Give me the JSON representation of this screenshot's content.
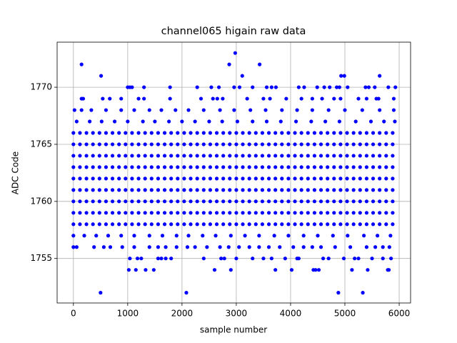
{
  "chart_data": {
    "type": "scatter",
    "title": "channel065 higain raw data",
    "x_label": "sample number",
    "y_label": "ADC Code",
    "xlim": [
      -300,
      6210
    ],
    "ylim": [
      1751.1,
      1773.95
    ],
    "xticks": [
      0,
      1000,
      2000,
      3000,
      4000,
      5000,
      6000
    ],
    "yticks": [
      1755,
      1760,
      1765,
      1770
    ],
    "grid": true,
    "color": "#0000ff",
    "x": [
      0,
      120,
      240,
      360,
      480,
      600,
      720,
      840,
      960,
      1080,
      1200,
      1320,
      1440,
      1560,
      1680,
      1800,
      1920,
      2040,
      2160,
      2280,
      2400,
      2520,
      2640,
      2760,
      2880,
      3000,
      3120,
      3240,
      3360,
      3480,
      3600,
      3720,
      3840,
      3960,
      4080,
      4200,
      4320,
      4440,
      4560,
      4680,
      4800,
      4920,
      5040,
      5160,
      5280,
      5400,
      5520,
      5640,
      5760,
      5880
    ],
    "series": [
      {
        "values": [
          1758,
          1758,
          1758,
          1758,
          1758,
          1758,
          1758,
          1758,
          1758,
          1758,
          1758,
          1758,
          1758,
          1758,
          1758,
          1758,
          1758,
          1758,
          1758,
          1758,
          1758,
          1758,
          1758,
          1758,
          1758,
          1758,
          1758,
          1758,
          1758,
          1758,
          1758,
          1758,
          1758,
          1758,
          1758,
          1758,
          1758,
          1758,
          1758,
          1758,
          1758,
          1758,
          1758,
          1758,
          1758,
          1758,
          1758,
          1758,
          1758,
          1758
        ]
      },
      {
        "values": [
          1759,
          1759,
          1759,
          1759,
          1759,
          1759,
          1759,
          1759,
          1759,
          1759,
          1759,
          1759,
          1759,
          1759,
          1759,
          1759,
          1759,
          1759,
          1759,
          1759,
          1759,
          1759,
          1759,
          1759,
          1759,
          1759,
          1759,
          1759,
          1759,
          1759,
          1759,
          1759,
          1759,
          1759,
          1759,
          1759,
          1759,
          1759,
          1759,
          1759,
          1759,
          1759,
          1759,
          1759,
          1759,
          1759,
          1759,
          1759,
          1759,
          1759
        ]
      },
      {
        "values": [
          1760,
          1760,
          1760,
          1760,
          1760,
          1760,
          1760,
          1760,
          1760,
          1760,
          1760,
          1760,
          1760,
          1760,
          1760,
          1760,
          1760,
          1760,
          1760,
          1760,
          1760,
          1760,
          1760,
          1760,
          1760,
          1760,
          1760,
          1760,
          1760,
          1760,
          1760,
          1760,
          1760,
          1760,
          1760,
          1760,
          1760,
          1760,
          1760,
          1760,
          1760,
          1760,
          1760,
          1760,
          1760,
          1760,
          1760,
          1760,
          1760,
          1760
        ]
      },
      {
        "values": [
          1761,
          1761,
          1761,
          1761,
          1761,
          1761,
          1761,
          1761,
          1761,
          1761,
          1761,
          1761,
          1761,
          1761,
          1761,
          1761,
          1761,
          1761,
          1761,
          1761,
          1761,
          1761,
          1761,
          1761,
          1761,
          1761,
          1761,
          1761,
          1761,
          1761,
          1761,
          1761,
          1761,
          1761,
          1761,
          1761,
          1761,
          1761,
          1761,
          1761,
          1761,
          1761,
          1761,
          1761,
          1761,
          1761,
          1761,
          1761,
          1761,
          1761
        ]
      },
      {
        "values": [
          1762,
          1762,
          1762,
          1762,
          1762,
          1762,
          1762,
          1762,
          1762,
          1762,
          1762,
          1762,
          1762,
          1762,
          1762,
          1762,
          1762,
          1762,
          1762,
          1762,
          1762,
          1762,
          1762,
          1762,
          1762,
          1762,
          1762,
          1762,
          1762,
          1762,
          1762,
          1762,
          1762,
          1762,
          1762,
          1762,
          1762,
          1762,
          1762,
          1762,
          1762,
          1762,
          1762,
          1762,
          1762,
          1762,
          1762,
          1762,
          1762,
          1762
        ]
      },
      {
        "values": [
          1763,
          1763,
          1763,
          1763,
          1763,
          1763,
          1763,
          1763,
          1763,
          1763,
          1763,
          1763,
          1763,
          1763,
          1763,
          1763,
          1763,
          1763,
          1763,
          1763,
          1763,
          1763,
          1763,
          1763,
          1763,
          1763,
          1763,
          1763,
          1763,
          1763,
          1763,
          1763,
          1763,
          1763,
          1763,
          1763,
          1763,
          1763,
          1763,
          1763,
          1763,
          1763,
          1763,
          1763,
          1763,
          1763,
          1763,
          1763,
          1763,
          1763
        ]
      },
      {
        "values": [
          1764,
          1764,
          1764,
          1764,
          1764,
          1764,
          1764,
          1764,
          1764,
          1764,
          1764,
          1764,
          1764,
          1764,
          1764,
          1764,
          1764,
          1764,
          1764,
          1764,
          1764,
          1764,
          1764,
          1764,
          1764,
          1764,
          1764,
          1764,
          1764,
          1764,
          1764,
          1764,
          1764,
          1764,
          1764,
          1764,
          1764,
          1764,
          1764,
          1764,
          1764,
          1764,
          1764,
          1764,
          1764,
          1764,
          1764,
          1764,
          1764,
          1764
        ]
      },
      {
        "values": [
          1765,
          1765,
          1765,
          1765,
          1765,
          1765,
          1765,
          1765,
          1765,
          1765,
          1765,
          1765,
          1765,
          1765,
          1765,
          1765,
          1765,
          1765,
          1765,
          1765,
          1765,
          1765,
          1765,
          1765,
          1765,
          1765,
          1765,
          1765,
          1765,
          1765,
          1765,
          1765,
          1765,
          1765,
          1765,
          1765,
          1765,
          1765,
          1765,
          1765,
          1765,
          1765,
          1765,
          1765,
          1765,
          1765,
          1765,
          1765,
          1765,
          1765
        ]
      },
      {
        "values": [
          1766,
          1766,
          1766,
          1766,
          1766,
          1766,
          1766,
          1766,
          1766,
          1766,
          1766,
          1766,
          1766,
          1766,
          1766,
          1766,
          1766,
          1766,
          1766,
          1766,
          1766,
          1766,
          1766,
          1766,
          1766,
          1766,
          1766,
          1766,
          1766,
          1766,
          1766,
          1766,
          1766,
          1766,
          1766,
          1766,
          1766,
          1766,
          1766,
          1766,
          1766,
          1766,
          1766,
          1766,
          1766,
          1766,
          1766,
          1766,
          1766,
          1766
        ]
      },
      {
        "x": [
          0,
          200,
          420,
          640,
          880,
          1120,
          1400,
          1640,
          1900,
          2120,
          2380,
          2620,
          2900,
          3160,
          3420,
          3700,
          3960,
          4240,
          4500,
          4780,
          5050,
          5350,
          5600,
          5840
        ],
        "values": [
          1757,
          1757,
          1757,
          1757,
          1757,
          1757,
          1757,
          1757,
          1757,
          1757,
          1757,
          1757,
          1757,
          1757,
          1757,
          1757,
          1757,
          1757,
          1757,
          1757,
          1757,
          1757,
          1757,
          1757
        ]
      },
      {
        "x": [
          60,
          300,
          520,
          760,
          1000,
          1280,
          1500,
          1760,
          2000,
          2240,
          2500,
          2740,
          3020,
          3300,
          3560,
          3820,
          4100,
          4380,
          4640,
          4900,
          5200,
          5480,
          5720,
          5920
        ],
        "values": [
          1767,
          1767,
          1767,
          1767,
          1767,
          1767,
          1767,
          1767,
          1767,
          1767,
          1767,
          1767,
          1767,
          1767,
          1767,
          1767,
          1767,
          1767,
          1767,
          1767,
          1767,
          1767,
          1767,
          1767
        ]
      },
      {
        "x": [
          20,
          150,
          330,
          600,
          880,
          1120,
          1400,
          1620,
          1880,
          2120,
          2400,
          2700,
          2960,
          3260,
          3540,
          3840,
          4120,
          4400,
          4700,
          5000,
          5320,
          5640,
          5900
        ],
        "values": [
          1768,
          1768,
          1768,
          1768,
          1768,
          1768,
          1768,
          1768,
          1768,
          1768,
          1768,
          1768,
          1768,
          1768,
          1768,
          1768,
          1768,
          1768,
          1768,
          1768,
          1768,
          1768,
          1768
        ]
      },
      {
        "x": [
          0,
          60,
          380,
          560,
          680,
          900,
          1120,
          1400,
          1560,
          1700,
          1900,
          2100,
          2240,
          2460,
          2700,
          2860,
          3050,
          3240,
          3420,
          3600,
          3800,
          4050,
          4240,
          4400,
          4560,
          4820,
          5100,
          5400,
          5560,
          5700,
          5820
        ],
        "values": [
          1756,
          1756,
          1756,
          1756,
          1756,
          1756,
          1756,
          1756,
          1756,
          1756,
          1756,
          1756,
          1756,
          1756,
          1756,
          1756,
          1756,
          1756,
          1756,
          1756,
          1756,
          1756,
          1756,
          1756,
          1756,
          1756,
          1756,
          1756,
          1756,
          1756,
          1756
        ]
      },
      {
        "x": [
          1040,
          1180,
          1250,
          1560,
          1620,
          1700,
          1800,
          2400,
          2720,
          2780,
          3000,
          3300,
          3500,
          3650,
          3900,
          4120,
          4150,
          4600,
          4700,
          4980,
          5180,
          5250,
          5500,
          5700,
          5850
        ],
        "values": [
          1755,
          1755,
          1755,
          1755,
          1755,
          1755,
          1755,
          1755,
          1755,
          1755,
          1755,
          1755,
          1755,
          1755,
          1755,
          1755,
          1755,
          1755,
          1755,
          1755,
          1755,
          1755,
          1755,
          1755,
          1755
        ]
      },
      {
        "x": [
          1020,
          1150,
          1330,
          1480,
          2600,
          2900,
          3720,
          4020,
          4420,
          4460,
          4520,
          5130,
          5420,
          5790,
          5810
        ],
        "values": [
          1754,
          1754,
          1754,
          1754,
          1754,
          1754,
          1754,
          1754,
          1754,
          1754,
          1754,
          1754,
          1754,
          1754,
          1754
        ]
      },
      {
        "x": [
          500,
          2080,
          4880,
          5330
        ],
        "values": [
          1752,
          1752,
          1752,
          1752
        ]
      },
      {
        "x": [
          150,
          180,
          540,
          670,
          880,
          1200,
          1300,
          1780,
          2350,
          2570,
          2650,
          2750,
          3200,
          3500,
          3620,
          3920,
          4200,
          4400,
          4580,
          4800,
          4920,
          5250,
          5400,
          5580,
          5620,
          5900
        ],
        "values": [
          1769,
          1769,
          1769,
          1769,
          1769,
          1769,
          1769,
          1769,
          1769,
          1769,
          1769,
          1769,
          1769,
          1769,
          1769,
          1769,
          1769,
          1769,
          1769,
          1769,
          1769,
          1769,
          1769,
          1769,
          1769,
          1769
        ]
      },
      {
        "x": [
          1000,
          1040,
          1080,
          1300,
          1780,
          2280,
          2540,
          2680,
          2960,
          3060,
          3300,
          3560,
          3650,
          3730,
          4150,
          4250,
          4490,
          4620,
          4720,
          4850,
          4900,
          5050,
          5380,
          5440,
          5550,
          5800,
          5930
        ],
        "values": [
          1770,
          1770,
          1770,
          1770,
          1770,
          1770,
          1770,
          1770,
          1770,
          1770,
          1770,
          1770,
          1770,
          1770,
          1770,
          1770,
          1770,
          1770,
          1770,
          1770,
          1770,
          1770,
          1770,
          1770,
          1770,
          1770,
          1770
        ]
      },
      {
        "x": [
          510,
          3110,
          4930,
          4990,
          5640
        ],
        "values": [
          1771,
          1771,
          1771,
          1771,
          1771
        ]
      },
      {
        "x": [
          150,
          2870,
          3430
        ],
        "values": [
          1772,
          1772,
          1772
        ]
      },
      {
        "x": [
          2980
        ],
        "values": [
          1773
        ]
      }
    ]
  }
}
